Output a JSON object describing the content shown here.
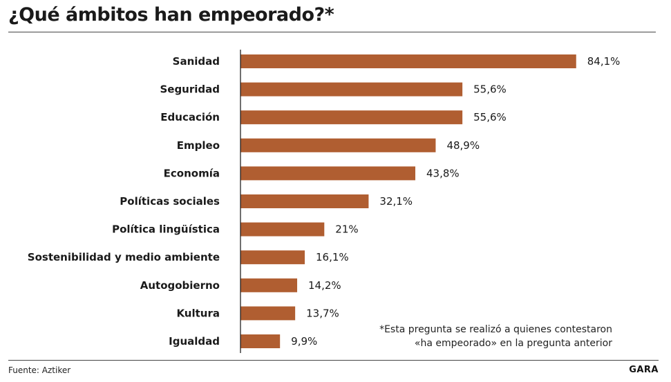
{
  "header": {
    "title": "¿Qué ámbitos han empeorado?*"
  },
  "chart_data": {
    "type": "bar",
    "orientation": "horizontal",
    "categories": [
      "Sanidad",
      "Seguridad",
      "Educación",
      "Empleo",
      "Economía",
      "Políticas sociales",
      "Política lingüística",
      "Sostenibilidad y medio ambiente",
      "Autogobierno",
      "Kultura",
      "Igualdad"
    ],
    "values": [
      84.1,
      55.6,
      55.6,
      48.9,
      43.8,
      32.1,
      21,
      16.1,
      14.2,
      13.7,
      9.9
    ],
    "value_labels": [
      "84,1%",
      "55,6%",
      "55,6%",
      "48,9%",
      "43,8%",
      "32,1%",
      "21%",
      "16,1%",
      "14,2%",
      "13,7%",
      "9,9%"
    ],
    "xlim": [
      0,
      100
    ],
    "bar_color": "#b05e31",
    "grid": false,
    "legend": "none"
  },
  "footnote": {
    "line1": "*Esta pregunta se realizó a quienes contestaron",
    "line2": "«ha empeorado» en la pregunta anterior"
  },
  "footer": {
    "source": "Fuente: Aztiker",
    "brand": "GARA"
  }
}
